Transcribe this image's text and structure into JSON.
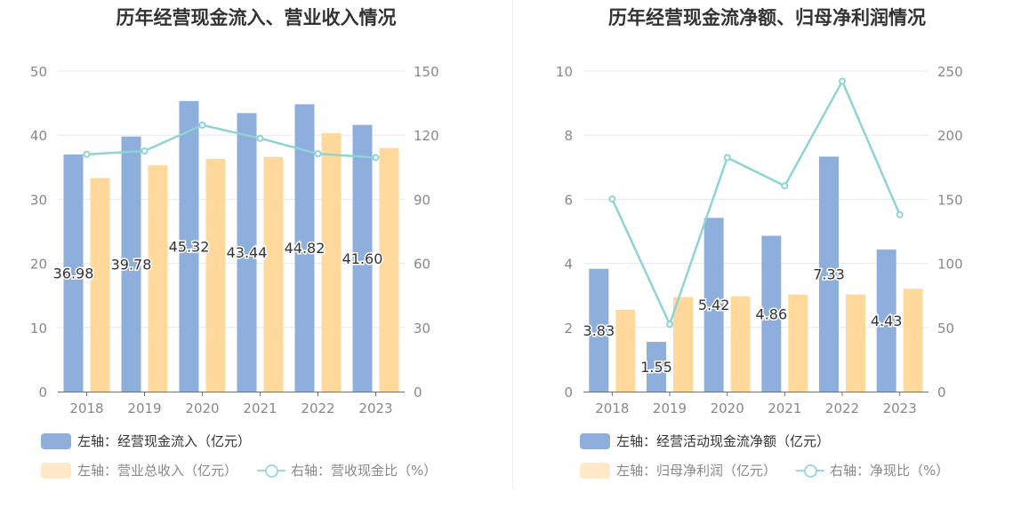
{
  "chart_data": [
    {
      "type": "bar",
      "title": "历年经营现金流入、营业收入情况",
      "categories": [
        "2018",
        "2019",
        "2020",
        "2021",
        "2022",
        "2023"
      ],
      "series": [
        {
          "name": "左轴：经营现金流入（亿元）",
          "axis": "left",
          "kind": "bar",
          "color": "#8eaedc",
          "values": [
            36.98,
            39.78,
            45.32,
            43.44,
            44.82,
            41.6
          ],
          "labels": [
            "36.98",
            "39.78",
            "45.32",
            "43.44",
            "44.82",
            "41.60"
          ]
        },
        {
          "name": "左轴：营业总收入（亿元）",
          "axis": "left",
          "kind": "bar",
          "color": "#ffd99c",
          "values": [
            33.3,
            35.3,
            36.3,
            36.6,
            40.3,
            38.0
          ]
        },
        {
          "name": "右轴：营收现金比（%）",
          "axis": "right",
          "kind": "line",
          "color": "#8fd3d6",
          "values": [
            111.0,
            112.6,
            124.7,
            118.5,
            111.3,
            109.5
          ]
        }
      ],
      "left_axis": {
        "min": 0,
        "max": 50,
        "ticks": [
          "0",
          "10",
          "20",
          "30",
          "40",
          "50"
        ]
      },
      "right_axis": {
        "min": 0,
        "max": 150,
        "ticks": [
          "0",
          "30",
          "60",
          "90",
          "120",
          "150"
        ]
      },
      "grid": true,
      "legend": "bottom"
    },
    {
      "type": "bar",
      "title": "历年经营现金流净额、归母净利润情况",
      "categories": [
        "2018",
        "2019",
        "2020",
        "2021",
        "2022",
        "2023"
      ],
      "series": [
        {
          "name": "左轴：经营活动现金流净额（亿元）",
          "axis": "left",
          "kind": "bar",
          "color": "#8eaedc",
          "values": [
            3.83,
            1.55,
            5.42,
            4.86,
            7.33,
            4.43
          ],
          "labels": [
            "3.83",
            "1.55",
            "5.42",
            "4.86",
            "7.33",
            "4.43"
          ]
        },
        {
          "name": "左轴：归母净利润（亿元）",
          "axis": "left",
          "kind": "bar",
          "color": "#ffd99c",
          "values": [
            2.55,
            2.95,
            2.97,
            3.03,
            3.03,
            3.21
          ]
        },
        {
          "name": "右轴：净现比（%）",
          "axis": "right",
          "kind": "line",
          "color": "#8fd3d6",
          "values": [
            150.2,
            52.5,
            182.5,
            160.4,
            242.0,
            138.0
          ]
        }
      ],
      "left_axis": {
        "min": 0,
        "max": 10,
        "ticks": [
          "0",
          "2",
          "4",
          "6",
          "8",
          "10"
        ]
      },
      "right_axis": {
        "min": 0,
        "max": 250,
        "ticks": [
          "0",
          "50",
          "100",
          "150",
          "200",
          "250"
        ]
      },
      "grid": true,
      "legend": "bottom"
    }
  ]
}
